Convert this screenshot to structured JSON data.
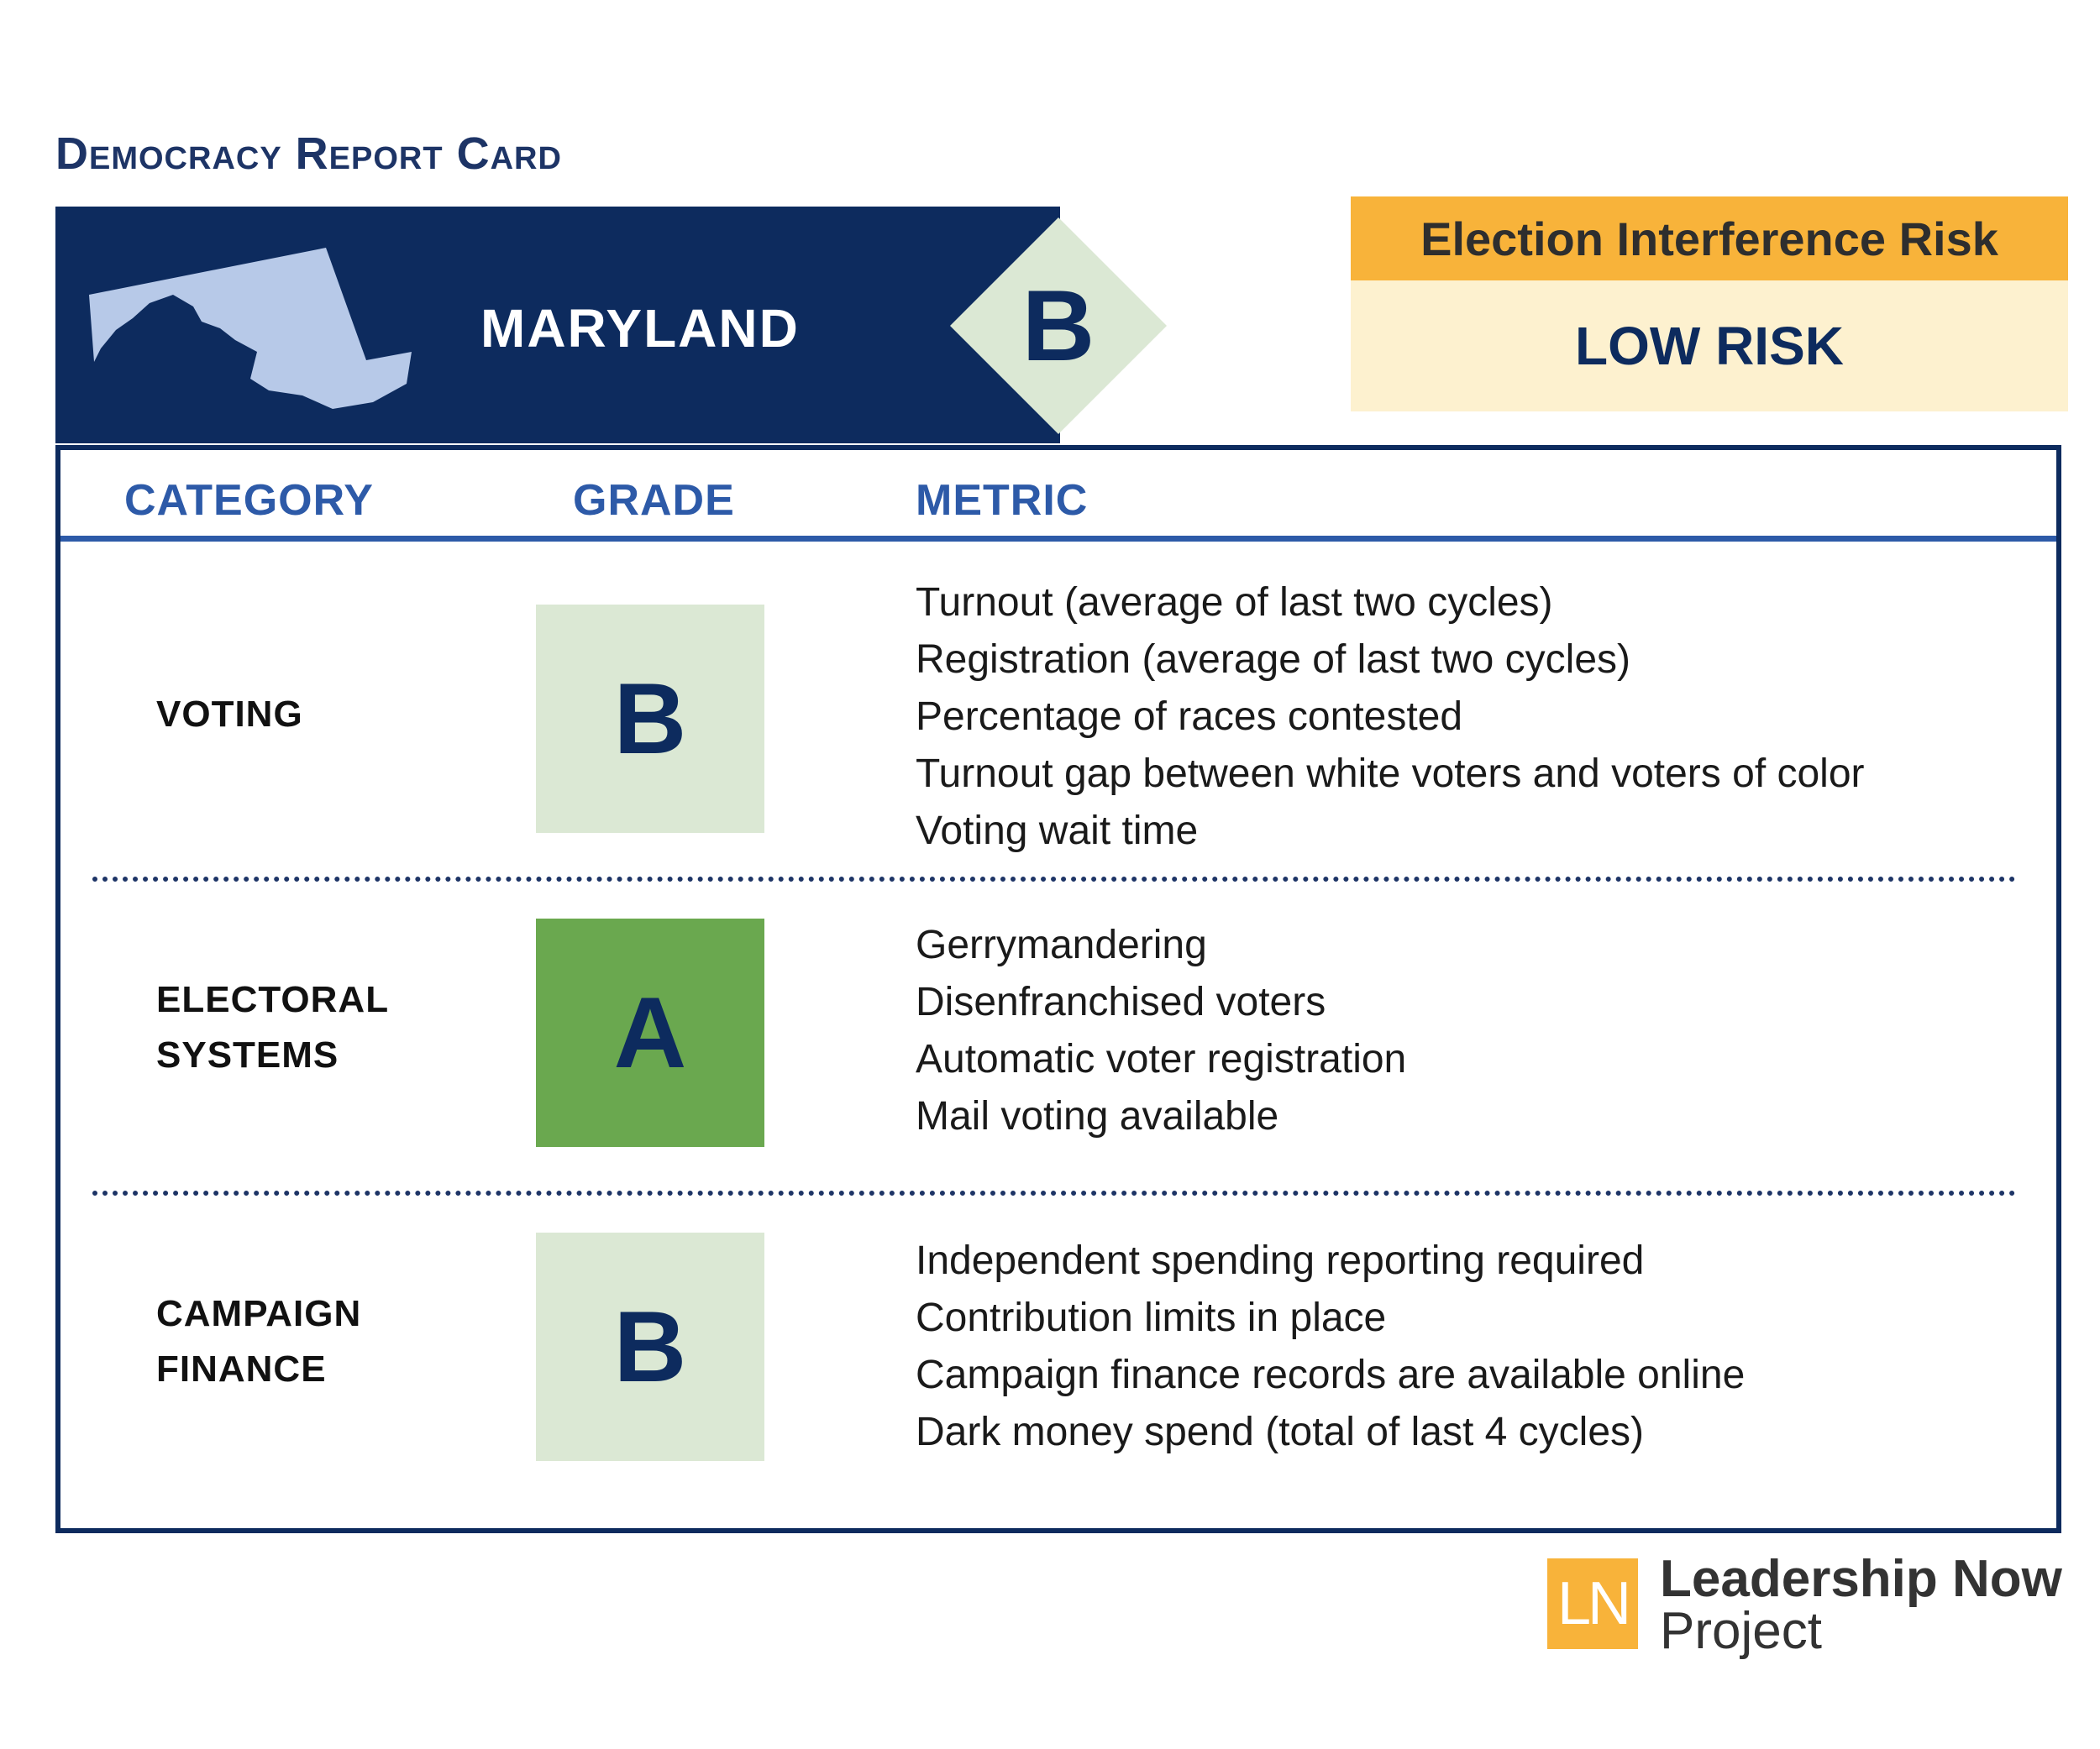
{
  "title": "Democracy Report Card",
  "banner": {
    "state": "MARYLAND",
    "overall_grade": "B"
  },
  "risk": {
    "heading": "Election Interference Risk",
    "level": "LOW RISK"
  },
  "table": {
    "headers": {
      "category": "CATEGORY",
      "grade": "GRADE",
      "metric": "METRIC"
    },
    "rows": [
      {
        "category": "VOTING",
        "grade": "B",
        "metrics": [
          "Turnout (average of last two cycles)",
          "Registration (average of last two cycles)",
          "Percentage of races contested",
          "Turnout gap between white voters and voters of color",
          "Voting wait time"
        ]
      },
      {
        "category": "ELECTORAL\nSYSTEMS",
        "grade": "A",
        "metrics": [
          "Gerrymandering",
          "Disenfranchised voters",
          "Automatic voter registration",
          "Mail voting available"
        ]
      },
      {
        "category": "CAMPAIGN\nFINANCE",
        "grade": "B",
        "metrics": [
          "Independent spending reporting required",
          "Contribution limits in place",
          "Campaign finance records are available online",
          "Dark money spend (total of last 4 cycles)"
        ]
      }
    ]
  },
  "logo": {
    "mark": "LN",
    "line1": "Leadership Now",
    "line2": "Project"
  },
  "colors": {
    "navy": "#0d2b5e",
    "accent_blue": "#2d5aa8",
    "grade_b_bg": "#dbe8d4",
    "grade_a_bg": "#6aa84f",
    "risk_orange": "#f8b33a",
    "risk_cream": "#fdf1cf",
    "map_fill": "#b7c9e8"
  }
}
